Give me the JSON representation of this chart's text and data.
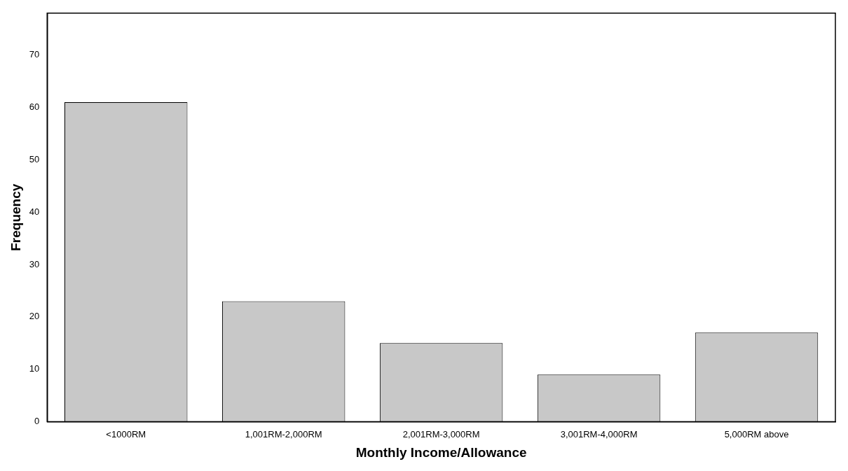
{
  "chart_data": {
    "type": "bar",
    "xlabel": "Monthly Income/Allowance",
    "ylabel": "Frequency",
    "categories": [
      "<1000RM",
      "1,001RM-2,000RM",
      "2,001RM-3,000RM",
      "3,001RM-4,000RM",
      "5,000RM above"
    ],
    "values": [
      61,
      23,
      15,
      9,
      17
    ],
    "color": "#c8c8c8",
    "ylim": [
      0,
      78
    ],
    "yticks": [
      0,
      10,
      20,
      30,
      40,
      50,
      60,
      70
    ],
    "grid": false,
    "legend": false
  }
}
